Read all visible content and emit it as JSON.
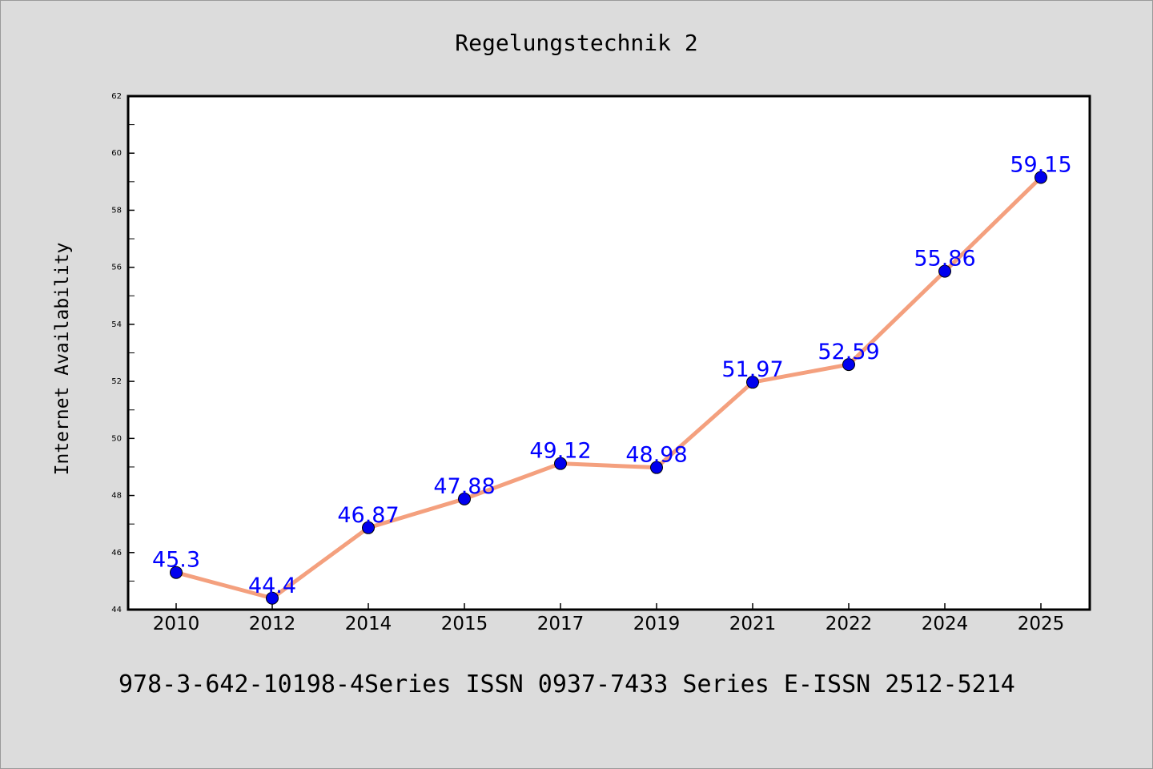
{
  "chart_data": {
    "type": "line",
    "title": "Regelungstechnik 2",
    "xlabel": "",
    "ylabel": "Internet Availability",
    "categories": [
      "2010",
      "2012",
      "2014",
      "2015",
      "2017",
      "2019",
      "2021",
      "2022",
      "2024",
      "2025"
    ],
    "series": [
      {
        "values": [
          45.3,
          44.4,
          46.87,
          47.88,
          49.12,
          48.98,
          51.97,
          52.59,
          55.86,
          59.15
        ],
        "data_labels": [
          "45.3",
          "44.4",
          "46.87",
          "47.88",
          "49.12",
          "48.98",
          "51.97",
          "52.59",
          "55.86",
          "59.15"
        ]
      }
    ],
    "ylim": [
      44,
      62
    ],
    "yticks": [
      "44",
      "46",
      "48",
      "50",
      "52",
      "54",
      "56",
      "58",
      "60",
      "62"
    ],
    "grid": false,
    "colors": {
      "background": "#dcdcdc",
      "plot_background": "#ffffff",
      "line": "#f4a07e",
      "marker": "#0000ee",
      "data_label": "#0000ff",
      "text": "#000000"
    }
  },
  "footer": {
    "text": "978-3-642-10198-4Series ISSN 0937-7433 Series E-ISSN 2512-5214"
  }
}
